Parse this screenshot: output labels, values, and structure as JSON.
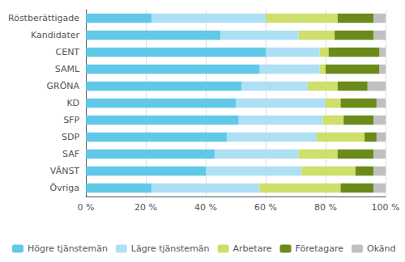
{
  "chart_data": {
    "type": "bar",
    "orientation": "horizontal",
    "stacked": true,
    "categories": [
      "Röstberättigade",
      "Kandidater",
      "CENT",
      "SAML",
      "GRÖNA",
      "KD",
      "SFP",
      "SDP",
      "SAF",
      "VÄNST",
      "Övriga"
    ],
    "series": [
      {
        "name": "Högre tjänstemän",
        "color": "#62C8E8",
        "values": [
          22,
          45,
          60,
          58,
          52,
          50,
          51,
          47,
          43,
          40,
          22
        ]
      },
      {
        "name": "Lägre tjänstemän",
        "color": "#ADE0F5",
        "values": [
          38,
          26,
          18,
          20,
          22,
          30,
          28,
          30,
          28,
          32,
          36
        ]
      },
      {
        "name": "Arbetare",
        "color": "#CEDF6B",
        "values": [
          24,
          12,
          3,
          2,
          10,
          5,
          7,
          16,
          13,
          18,
          27
        ]
      },
      {
        "name": "Företagare",
        "color": "#6B8A1A",
        "values": [
          12,
          13,
          17,
          18,
          10,
          12,
          10,
          4,
          12,
          6,
          11
        ]
      },
      {
        "name": "Okänd",
        "color": "#C0C0C0",
        "values": [
          4,
          4,
          2,
          2,
          6,
          3,
          4,
          3,
          4,
          4,
          4
        ]
      }
    ],
    "xlim": [
      0,
      100
    ],
    "xticks": [
      {
        "value": 0,
        "label": "0 %"
      },
      {
        "value": 20,
        "label": "20 %"
      },
      {
        "value": 40,
        "label": "40 %"
      },
      {
        "value": 60,
        "label": "60 %"
      },
      {
        "value": 80,
        "label": "80 %"
      },
      {
        "value": 100,
        "label": "100 %"
      }
    ],
    "grid": true,
    "legend": "bottom"
  }
}
